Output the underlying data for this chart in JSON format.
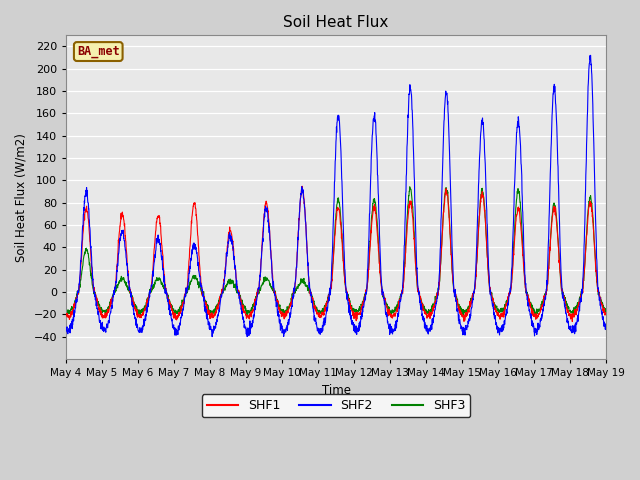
{
  "title": "Soil Heat Flux",
  "ylabel": "Soil Heat Flux (W/m2)",
  "xlabel": "Time",
  "ylim": [
    -60,
    230
  ],
  "yticks": [
    -40,
    -20,
    0,
    20,
    40,
    60,
    80,
    100,
    120,
    140,
    160,
    180,
    200,
    220
  ],
  "bg_color": "#e8e8e8",
  "grid_color": "white",
  "shf1_color": "red",
  "shf2_color": "blue",
  "shf3_color": "green",
  "legend_label": "BA_met",
  "n_days": 15,
  "pts_per_day": 144,
  "start_day": 4,
  "shf1_peaks": [
    75,
    70,
    68,
    80,
    55,
    80,
    92,
    75,
    75,
    80,
    90,
    88,
    75,
    75,
    80
  ],
  "shf2_peaks": [
    90,
    55,
    47,
    43,
    50,
    75,
    92,
    158,
    158,
    183,
    179,
    154,
    153,
    183,
    210
  ],
  "shf3_peaks": [
    38,
    12,
    12,
    14,
    10,
    12,
    10,
    83,
    83,
    93,
    93,
    91,
    91,
    79,
    85
  ],
  "shf1_night": -22,
  "shf2_night": -35,
  "shf3_night": -18
}
